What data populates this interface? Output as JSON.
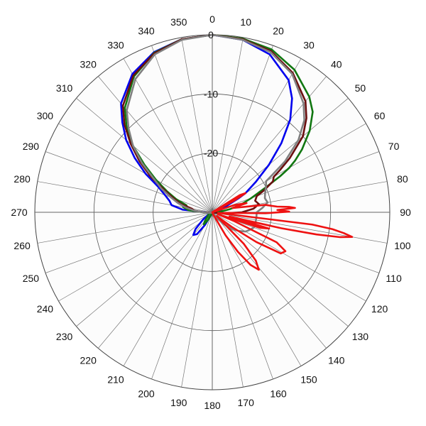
{
  "chart_data": {
    "type": "line",
    "coordinate_system": "polar",
    "angle_direction": "clockwise",
    "angle_zero": "top",
    "angle_ticks": [
      0,
      10,
      20,
      30,
      40,
      50,
      60,
      70,
      80,
      90,
      100,
      110,
      120,
      130,
      140,
      150,
      160,
      170,
      180,
      190,
      200,
      210,
      220,
      230,
      240,
      250,
      260,
      270,
      280,
      290,
      300,
      310,
      320,
      330,
      340,
      350
    ],
    "radial_ticks": [
      0,
      -10,
      -20
    ],
    "radial_range": [
      -30,
      0
    ],
    "grid": true,
    "legend": "none",
    "series": [
      {
        "color": "#0000ee",
        "points": [
          [
            0,
            0
          ],
          [
            10,
            -0.4
          ],
          [
            20,
            -1.6
          ],
          [
            30,
            -4.2
          ],
          [
            35,
            -6.5
          ],
          [
            40,
            -9.5
          ],
          [
            45,
            -13.5
          ],
          [
            50,
            -17.5
          ],
          [
            55,
            -21
          ],
          [
            60,
            -23.5
          ],
          [
            62,
            -25
          ],
          [
            65,
            -27
          ],
          [
            70,
            -28
          ],
          [
            75,
            -28.5
          ],
          [
            80,
            -28.5
          ],
          [
            85,
            -29
          ],
          [
            90,
            -29.5
          ],
          [
            100,
            -29.8
          ],
          [
            120,
            -29.8
          ],
          [
            150,
            -29.9
          ],
          [
            180,
            -29.9
          ],
          [
            200,
            -29.8
          ],
          [
            210,
            -27.5
          ],
          [
            215,
            -25.5
          ],
          [
            220,
            -25
          ],
          [
            225,
            -26
          ],
          [
            232,
            -28
          ],
          [
            240,
            -29.3
          ],
          [
            255,
            -29.5
          ],
          [
            265,
            -29
          ],
          [
            270,
            -28.8
          ],
          [
            275,
            -25
          ],
          [
            280,
            -23
          ],
          [
            285,
            -22.5
          ],
          [
            290,
            -21.5
          ],
          [
            295,
            -20
          ],
          [
            300,
            -17
          ],
          [
            305,
            -14
          ],
          [
            310,
            -11
          ],
          [
            315,
            -8.5
          ],
          [
            320,
            -6
          ],
          [
            330,
            -3
          ],
          [
            340,
            -1.2
          ],
          [
            350,
            -0.3
          ],
          [
            360,
            0
          ]
        ]
      },
      {
        "color": "#117711",
        "points": [
          [
            0,
            0
          ],
          [
            10,
            -0.2
          ],
          [
            20,
            -0.7
          ],
          [
            30,
            -2.2
          ],
          [
            40,
            -4.5
          ],
          [
            45,
            -6
          ],
          [
            50,
            -8.5
          ],
          [
            55,
            -11.5
          ],
          [
            58,
            -13.5
          ],
          [
            60,
            -15
          ],
          [
            62,
            -17
          ],
          [
            65,
            -20
          ],
          [
            70,
            -23
          ],
          [
            75,
            -25
          ],
          [
            80,
            -27
          ],
          [
            85,
            -28.5
          ],
          [
            90,
            -29.5
          ],
          [
            110,
            -29.8
          ],
          [
            150,
            -29.9
          ],
          [
            200,
            -29.8
          ],
          [
            210,
            -28.5
          ],
          [
            215,
            -27.5
          ],
          [
            220,
            -28
          ],
          [
            230,
            -29
          ],
          [
            250,
            -29.5
          ],
          [
            265,
            -29
          ],
          [
            270,
            -28.5
          ],
          [
            275,
            -26
          ],
          [
            280,
            -25
          ],
          [
            285,
            -25.5
          ],
          [
            290,
            -23.5
          ],
          [
            295,
            -21.5
          ],
          [
            300,
            -19
          ],
          [
            305,
            -16
          ],
          [
            310,
            -12.5
          ],
          [
            315,
            -9.5
          ],
          [
            320,
            -7
          ],
          [
            330,
            -3.5
          ],
          [
            340,
            -1.3
          ],
          [
            350,
            -0.3
          ],
          [
            360,
            0
          ]
        ]
      },
      {
        "color": "#6a0f0f",
        "points": [
          [
            0,
            0
          ],
          [
            10,
            -0.3
          ],
          [
            20,
            -1
          ],
          [
            30,
            -2.8
          ],
          [
            40,
            -5.5
          ],
          [
            45,
            -7.5
          ],
          [
            50,
            -10
          ],
          [
            55,
            -14
          ],
          [
            58,
            -16.5
          ],
          [
            60,
            -18
          ],
          [
            63,
            -18.5
          ],
          [
            67,
            -20.5
          ],
          [
            70,
            -22
          ],
          [
            75,
            -22.5
          ],
          [
            80,
            -22
          ],
          [
            85,
            -23
          ],
          [
            90,
            -25
          ],
          [
            95,
            -28
          ],
          [
            100,
            -29.5
          ],
          [
            150,
            -29.9
          ],
          [
            200,
            -29.9
          ],
          [
            240,
            -29.8
          ],
          [
            260,
            -29.5
          ],
          [
            270,
            -28.5
          ],
          [
            275,
            -27
          ],
          [
            280,
            -26.5
          ],
          [
            285,
            -24.5
          ],
          [
            290,
            -23
          ],
          [
            295,
            -21
          ],
          [
            300,
            -18
          ],
          [
            305,
            -15
          ],
          [
            310,
            -12
          ],
          [
            315,
            -9
          ],
          [
            320,
            -6.5
          ],
          [
            330,
            -3.3
          ],
          [
            340,
            -1.4
          ],
          [
            350,
            -0.3
          ],
          [
            360,
            0
          ]
        ]
      },
      {
        "color": "#808080",
        "points": [
          [
            0,
            0
          ],
          [
            10,
            -0.4
          ],
          [
            20,
            -1.2
          ],
          [
            30,
            -3
          ],
          [
            40,
            -6
          ],
          [
            45,
            -8
          ],
          [
            50,
            -11
          ],
          [
            55,
            -15
          ],
          [
            58,
            -18
          ],
          [
            60,
            -19.5
          ],
          [
            65,
            -20
          ],
          [
            70,
            -20.5
          ],
          [
            75,
            -20.8
          ],
          [
            80,
            -20.5
          ],
          [
            85,
            -21.5
          ],
          [
            90,
            -22.5
          ],
          [
            95,
            -22.5
          ],
          [
            100,
            -22.5
          ],
          [
            105,
            -22.5
          ],
          [
            110,
            -22.5
          ],
          [
            115,
            -23
          ],
          [
            120,
            -23.5
          ],
          [
            125,
            -24.5
          ],
          [
            130,
            -25.5
          ],
          [
            135,
            -27
          ],
          [
            140,
            -28.5
          ],
          [
            145,
            -29.5
          ],
          [
            160,
            -29.9
          ],
          [
            200,
            -29.9
          ],
          [
            240,
            -29.8
          ],
          [
            260,
            -29.3
          ],
          [
            270,
            -28.5
          ],
          [
            275,
            -27
          ],
          [
            280,
            -25.5
          ],
          [
            285,
            -24
          ],
          [
            290,
            -22.5
          ],
          [
            295,
            -20.5
          ],
          [
            300,
            -18.5
          ],
          [
            305,
            -15.5
          ],
          [
            310,
            -12.5
          ],
          [
            315,
            -10
          ],
          [
            320,
            -7.5
          ],
          [
            330,
            -4
          ],
          [
            340,
            -1.6
          ],
          [
            350,
            -0.4
          ],
          [
            360,
            0
          ]
        ]
      },
      {
        "color": "#ee1111",
        "points": [
          [
            50,
            -30
          ],
          [
            58,
            -24.5
          ],
          [
            60,
            -23.5
          ],
          [
            62,
            -26
          ],
          [
            66,
            -30
          ],
          [
            72,
            -26
          ],
          [
            75,
            -24
          ],
          [
            78,
            -26.5
          ],
          [
            82,
            -21
          ],
          [
            85,
            -19
          ],
          [
            86,
            -17
          ],
          [
            87,
            -16
          ],
          [
            88,
            -19
          ],
          [
            89.5,
            -17
          ],
          [
            91,
            -21
          ],
          [
            93,
            -28
          ],
          [
            95,
            -28
          ],
          [
            96,
            -29
          ],
          [
            97,
            -13
          ],
          [
            98,
            -9.5
          ],
          [
            99,
            -7.5
          ],
          [
            100,
            -6
          ],
          [
            101,
            -8
          ],
          [
            102,
            -12
          ],
          [
            103,
            -18
          ],
          [
            104,
            -27
          ],
          [
            106,
            -20
          ],
          [
            108,
            -21.5
          ],
          [
            109,
            -29
          ],
          [
            112,
            -26
          ],
          [
            115,
            -18
          ],
          [
            118,
            -16
          ],
          [
            121,
            -16.5
          ],
          [
            124,
            -21
          ],
          [
            127,
            -26
          ],
          [
            130,
            -29
          ],
          [
            135,
            -22.5
          ],
          [
            138,
            -19
          ],
          [
            141,
            -17.5
          ],
          [
            144,
            -19
          ],
          [
            147,
            -22
          ],
          [
            150,
            -25.5
          ],
          [
            155,
            -29.5
          ],
          [
            165,
            -30
          ],
          [
            200,
            -30
          ],
          [
            250,
            -30
          ],
          [
            300,
            -30
          ],
          [
            350,
            -30
          ],
          [
            10,
            -30
          ],
          [
            40,
            -30
          ],
          [
            50,
            -30
          ]
        ]
      }
    ]
  }
}
